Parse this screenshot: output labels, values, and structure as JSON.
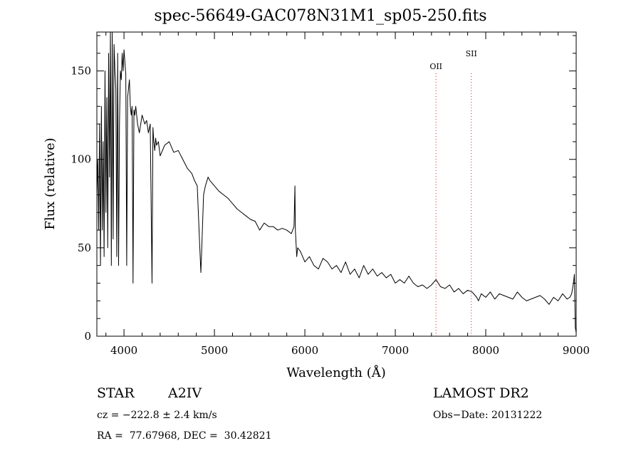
{
  "chart_data": {
    "type": "line",
    "title": "spec-56649-GAC078N31M1_sp05-250.fits",
    "xlabel": "Wavelength (Å)",
    "ylabel": "Flux (relative)",
    "xlim": [
      3700,
      9000
    ],
    "ylim": [
      0,
      172
    ],
    "x_ticks": [
      4000,
      5000,
      6000,
      7000,
      8000,
      9000
    ],
    "x_tick_labels": [
      "4000",
      "5000",
      "6000",
      "7000",
      "8000",
      "9000"
    ],
    "y_ticks": [
      0,
      50,
      100,
      150
    ],
    "y_tick_labels": [
      "0",
      "50",
      "100",
      "150"
    ],
    "grid": false,
    "series": [
      {
        "color": "#000000",
        "x": [
          3700,
          3710,
          3720,
          3730,
          3740,
          3750,
          3760,
          3770,
          3780,
          3790,
          3800,
          3810,
          3820,
          3830,
          3840,
          3850,
          3860,
          3870,
          3880,
          3890,
          3900,
          3910,
          3920,
          3930,
          3940,
          3950,
          3960,
          3970,
          3980,
          3990,
          4000,
          4010,
          4020,
          4030,
          4040,
          4050,
          4060,
          4070,
          4080,
          4090,
          4100,
          4110,
          4120,
          4130,
          4150,
          4170,
          4200,
          4230,
          4250,
          4270,
          4290,
          4310,
          4320,
          4330,
          4340,
          4350,
          4360,
          4380,
          4400,
          4450,
          4500,
          4550,
          4600,
          4650,
          4700,
          4750,
          4780,
          4810,
          4830,
          4850,
          4860,
          4870,
          4880,
          4900,
          4930,
          4950,
          5000,
          5050,
          5100,
          5150,
          5200,
          5250,
          5300,
          5350,
          5400,
          5450,
          5500,
          5550,
          5600,
          5650,
          5700,
          5750,
          5800,
          5850,
          5880,
          5890,
          5895,
          5900,
          5910,
          5920,
          5950,
          6000,
          6050,
          6100,
          6150,
          6200,
          6250,
          6300,
          6350,
          6400,
          6450,
          6500,
          6550,
          6600,
          6650,
          6700,
          6750,
          6800,
          6850,
          6900,
          6950,
          7000,
          7050,
          7100,
          7150,
          7200,
          7250,
          7300,
          7350,
          7400,
          7450,
          7500,
          7550,
          7600,
          7650,
          7700,
          7750,
          7800,
          7850,
          7900,
          7920,
          7950,
          8000,
          8050,
          8100,
          8150,
          8200,
          8250,
          8300,
          8350,
          8400,
          8450,
          8500,
          8550,
          8600,
          8650,
          8700,
          8750,
          8800,
          8850,
          8900,
          8930,
          8950,
          8970,
          8980,
          8985,
          8990,
          9000
        ],
        "y": [
          80,
          100,
          60,
          120,
          40,
          130,
          60,
          110,
          45,
          150,
          70,
          135,
          50,
          160,
          90,
          172,
          40,
          175,
          55,
          165,
          150,
          140,
          45,
          160,
          40,
          120,
          150,
          145,
          160,
          150,
          162,
          155,
          148,
          40,
          135,
          140,
          145,
          130,
          125,
          130,
          30,
          128,
          125,
          130,
          120,
          115,
          125,
          120,
          122,
          115,
          120,
          30,
          118,
          110,
          105,
          112,
          108,
          110,
          102,
          108,
          110,
          104,
          105,
          100,
          95,
          92,
          88,
          85,
          60,
          36,
          50,
          65,
          80,
          85,
          90,
          88,
          85,
          82,
          80,
          78,
          75,
          72,
          70,
          68,
          66,
          65,
          60,
          64,
          62,
          62,
          60,
          61,
          60,
          58,
          62,
          85,
          60,
          55,
          45,
          50,
          48,
          42,
          45,
          40,
          38,
          44,
          42,
          38,
          40,
          36,
          42,
          35,
          38,
          33,
          40,
          35,
          38,
          34,
          36,
          33,
          35,
          30,
          32,
          30,
          34,
          30,
          28,
          29,
          27,
          29,
          32,
          28,
          27,
          29,
          25,
          27,
          24,
          26,
          25,
          22,
          20,
          24,
          22,
          25,
          21,
          24,
          23,
          22,
          21,
          25,
          22,
          20,
          21,
          22,
          23,
          21,
          18,
          22,
          20,
          24,
          21,
          22,
          24,
          30,
          35,
          20,
          5,
          2
        ]
      }
    ],
    "annotations": [
      {
        "label": "OII",
        "x": 7450
      },
      {
        "label": "SII",
        "x": 7840
      }
    ],
    "annotation_line_color": "#d02020"
  },
  "info": {
    "object_class": "STAR",
    "subclass": "A2IV",
    "survey": "LAMOST DR2",
    "cz": "cz = −222.8 ± 2.4 km/s",
    "obs_date": "Obs−Date: 20131222",
    "coords": "RA =  77.67968, DEC =  30.42821"
  }
}
